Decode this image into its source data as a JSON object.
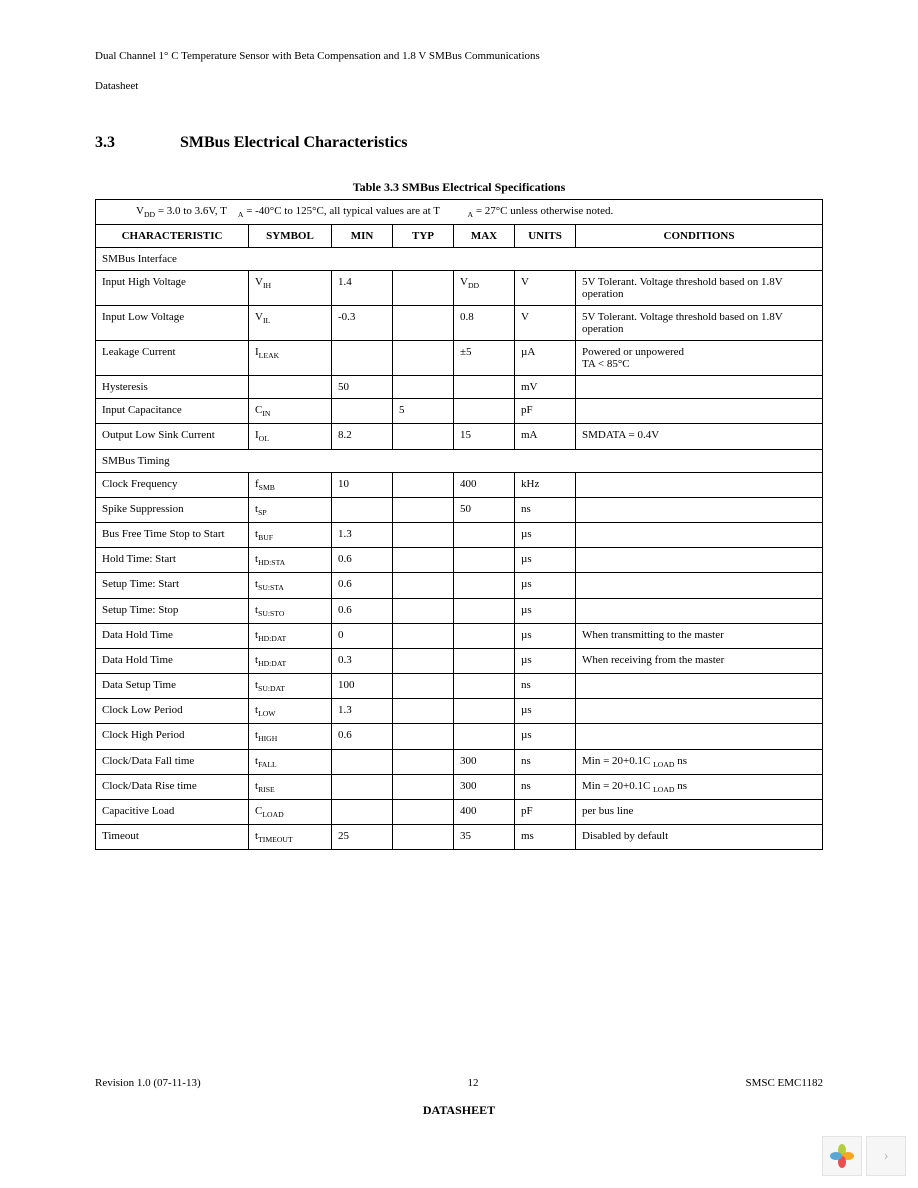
{
  "header": {
    "title_line": "Dual Channel 1° C Temperature Sensor with Beta Compensation and 1.8 V SMBus Communications",
    "doc_label": "Datasheet"
  },
  "section": {
    "number": "3.3",
    "title": "SMBus Electrical Characteristics"
  },
  "table": {
    "caption": "Table 3.3  SMBus Electrical Specifications",
    "condition_prefix": "V",
    "condition_sub1": "DD",
    "condition_mid1": " = 3.0 to 3.6V, T",
    "condition_sub2": "A",
    "condition_mid2": " = -40°C to 125°C, all typical values are at T",
    "condition_sub3": "A",
    "condition_tail": " = 27°C unless otherwise noted.",
    "headers": {
      "characteristic": "CHARACTERISTIC",
      "symbol": "SYMBOL",
      "min": "MIN",
      "typ": "TYP",
      "max": "MAX",
      "units": "UNITS",
      "conditions": "CONDITIONS"
    },
    "section1": "SMBus Interface",
    "rows1": [
      {
        "char": "Input High Voltage",
        "sym": "V",
        "sub": "IH",
        "min": "1.4",
        "typ": "",
        "max": "V",
        "maxsub": "DD",
        "units": "V",
        "cond": "5V Tolerant. Voltage threshold based on 1.8V operation"
      },
      {
        "char": "Input Low Voltage",
        "sym": "V",
        "sub": "IL",
        "min": "-0.3",
        "typ": "",
        "max": "0.8",
        "units": "V",
        "cond": "5V Tolerant. Voltage threshold based on 1.8V operation"
      },
      {
        "char": "Leakage Current",
        "sym": "I",
        "sub": "LEAK",
        "min": "",
        "typ": "",
        "max": "±5",
        "units": "µA",
        "cond": "Powered or unpowered\nTA < 85°C"
      },
      {
        "char": "Hysteresis",
        "sym": "",
        "sub": "",
        "min": "50",
        "typ": "",
        "max": "",
        "units": "mV",
        "cond": ""
      },
      {
        "char": "Input Capacitance",
        "sym": "C",
        "sub": "IN",
        "min": "",
        "typ": "5",
        "max": "",
        "units": "pF",
        "cond": ""
      },
      {
        "char": "Output Low Sink Current",
        "sym": "I",
        "sub": "OL",
        "min": "8.2",
        "typ": "",
        "max": "15",
        "units": "mA",
        "cond": "SMDATA = 0.4V"
      }
    ],
    "section2": "SMBus Timing",
    "rows2": [
      {
        "char": "Clock Frequency",
        "sym": "f",
        "sub": "SMB",
        "min": "10",
        "typ": "",
        "max": "400",
        "units": "kHz",
        "cond": ""
      },
      {
        "char": "Spike Suppression",
        "sym": "t",
        "sub": "SP",
        "min": "",
        "typ": "",
        "max": "50",
        "units": "ns",
        "cond": ""
      },
      {
        "char": "Bus Free Time Stop to Start",
        "sym": "t",
        "sub": "BUF",
        "min": "1.3",
        "typ": "",
        "max": "",
        "units": "µs",
        "cond": ""
      },
      {
        "char": "Hold Time: Start",
        "sym": "t",
        "sub": "HD:STA",
        "min": "0.6",
        "typ": "",
        "max": "",
        "units": "µs",
        "cond": ""
      },
      {
        "char": "Setup Time: Start",
        "sym": "t",
        "sub": "SU:STA",
        "min": "0.6",
        "typ": "",
        "max": "",
        "units": "µs",
        "cond": ""
      },
      {
        "char": "Setup Time: Stop",
        "sym": "t",
        "sub": "SU:STO",
        "min": "0.6",
        "typ": "",
        "max": "",
        "units": "µs",
        "cond": ""
      },
      {
        "char": "Data Hold Time",
        "sym": "t",
        "sub": "HD:DAT",
        "min": "0",
        "typ": "",
        "max": "",
        "units": "µs",
        "cond": "When transmitting to the master"
      },
      {
        "char": "Data Hold Time",
        "sym": "t",
        "sub": "HD:DAT",
        "min": "0.3",
        "typ": "",
        "max": "",
        "units": "µs",
        "cond": "When receiving from the master"
      },
      {
        "char": "Data Setup Time",
        "sym": "t",
        "sub": "SU:DAT",
        "min": "100",
        "typ": "",
        "max": "",
        "units": "ns",
        "cond": ""
      },
      {
        "char": "Clock Low Period",
        "sym": "t",
        "sub": "LOW",
        "min": "1.3",
        "typ": "",
        "max": "",
        "units": "µs",
        "cond": ""
      },
      {
        "char": "Clock High Period",
        "sym": "t",
        "sub": "HIGH",
        "min": "0.6",
        "typ": "",
        "max": "",
        "units": "µs",
        "cond": ""
      },
      {
        "char": "Clock/Data Fall time",
        "sym": "t",
        "sub": "FALL",
        "min": "",
        "typ": "",
        "max": "300",
        "units": "ns",
        "cond": "Min = 20+0.1C",
        "condsub": "LOAD",
        "condtail": "   ns"
      },
      {
        "char": "Clock/Data Rise time",
        "sym": "t",
        "sub": "RISE",
        "min": "",
        "typ": "",
        "max": "300",
        "units": "ns",
        "cond": "Min = 20+0.1C",
        "condsub": "LOAD",
        "condtail": "   ns"
      },
      {
        "char": "Capacitive Load",
        "sym": "C",
        "sub": "LOAD",
        "min": "",
        "typ": "",
        "max": "400",
        "units": "pF",
        "cond": "per bus line"
      },
      {
        "char": "Timeout",
        "sym": "t",
        "sub": "TIMEOUT",
        "min": "25",
        "typ": "",
        "max": "35",
        "units": "ms",
        "cond": "Disabled by default"
      }
    ]
  },
  "footer": {
    "left": "Revision 1.0 (07-11-13)",
    "center_page": "12",
    "right": "SMSC EMC1182",
    "bottom": "DATASHEET"
  },
  "widget": {
    "logo_colors": [
      "#b4cc3f",
      "#f5a623",
      "#e94f4f",
      "#5aa7d6"
    ],
    "chevron": "›"
  }
}
